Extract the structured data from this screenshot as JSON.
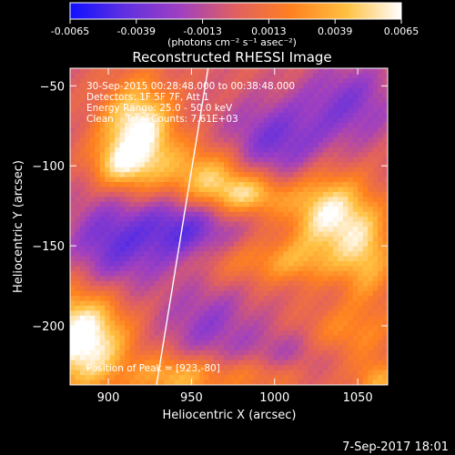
{
  "chart_data": {
    "type": "heatmap",
    "title": "Reconstructed RHESSI Image",
    "xlabel": "Heliocentric X (arcsec)",
    "ylabel": "Heliocentric Y (arcsec)",
    "xlim": [
      877,
      1068
    ],
    "ylim": [
      -237,
      -39
    ],
    "x_ticks": [
      900,
      950,
      1000,
      1050
    ],
    "y_ticks": [
      -50,
      -100,
      -150,
      -200
    ],
    "colorbar": {
      "min": -0.0065,
      "max": 0.0065,
      "ticks": [
        "-0.0065",
        "-0.0039",
        "-0.0013",
        "0.0013",
        "0.0039",
        "0.0065"
      ],
      "unit_label": "(photons cm⁻² s⁻¹ asec⁻²)",
      "colors": [
        "#1010ff",
        "#6030e0",
        "#a040c0",
        "#e06060",
        "#ff8020",
        "#ffc040",
        "#ffffff"
      ]
    },
    "annotations": [
      "30-Sep-2015 00:28:48.000 to 00:38:48.000",
      "Detectors: 1F 5F 7F, Att 1",
      "Energy Range: 25.0 - 50.0 keV",
      "Clean    Total Counts: 7.61E+03"
    ],
    "peak_label": "Position of Peak = [923,-80]",
    "limb_line": [
      [
        929,
        -237
      ],
      [
        960,
        -39
      ]
    ],
    "blobs": [
      {
        "x": 918,
        "y": -80,
        "sx": 15,
        "sy": 22,
        "amp": 0.007
      },
      {
        "x": 905,
        "y": -100,
        "sx": 12,
        "sy": 10,
        "amp": 0.003
      },
      {
        "x": 958,
        "y": -108,
        "sx": 18,
        "sy": 14,
        "amp": 0.005
      },
      {
        "x": 985,
        "y": -118,
        "sx": 16,
        "sy": 9,
        "amp": 0.0045
      },
      {
        "x": 1032,
        "y": -130,
        "sx": 16,
        "sy": 18,
        "amp": 0.006
      },
      {
        "x": 1055,
        "y": -155,
        "sx": 12,
        "sy": 22,
        "amp": 0.004
      },
      {
        "x": 1010,
        "y": -160,
        "sx": 20,
        "sy": 10,
        "amp": 0.003
      },
      {
        "x": 965,
        "y": -160,
        "sx": 18,
        "sy": 10,
        "amp": 0.002
      },
      {
        "x": 885,
        "y": -208,
        "sx": 18,
        "sy": 22,
        "amp": 0.0075
      },
      {
        "x": 940,
        "y": -232,
        "sx": 18,
        "sy": 10,
        "amp": 0.004
      },
      {
        "x": 1040,
        "y": -205,
        "sx": 22,
        "sy": 12,
        "amp": 0.0025
      },
      {
        "x": 990,
        "y": -232,
        "sx": 22,
        "sy": 8,
        "amp": 0.002
      },
      {
        "x": 1062,
        "y": -235,
        "sx": 10,
        "sy": 10,
        "amp": 0.0035
      }
    ],
    "troughs": [
      {
        "x": 945,
        "y": -140,
        "sx": 22,
        "sy": 18,
        "amp": -0.0045
      },
      {
        "x": 900,
        "y": -150,
        "sx": 18,
        "sy": 22,
        "amp": -0.0035
      },
      {
        "x": 1000,
        "y": -85,
        "sx": 22,
        "sy": 18,
        "amp": -0.0035
      },
      {
        "x": 1045,
        "y": -60,
        "sx": 20,
        "sy": 18,
        "amp": -0.003
      },
      {
        "x": 960,
        "y": -200,
        "sx": 20,
        "sy": 18,
        "amp": -0.0025
      },
      {
        "x": 1010,
        "y": -215,
        "sx": 18,
        "sy": 12,
        "amp": -0.002
      }
    ]
  },
  "footer": {
    "timestamp": "7-Sep-2017 18:01"
  }
}
